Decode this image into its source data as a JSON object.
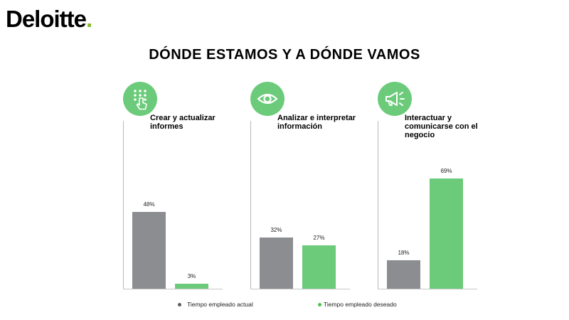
{
  "logo": {
    "text": "Deloitte",
    "dot": ".",
    "dot_color": "#86bc25"
  },
  "title": "DÓNDE ESTAMOS Y A DÓNDE VAMOS",
  "colors": {
    "actual": "#8b8d90",
    "desired": "#6bcb7a"
  },
  "legend": {
    "actual": "Tiempo empleado actual",
    "desired": "Tiempo empleado deseado"
  },
  "chart_data": {
    "type": "bar",
    "title": "DÓNDE ESTAMOS Y A DÓNDE VAMOS",
    "categories": [
      "Crear y actualizar informes",
      "Analizar e interpretar información",
      "Interactuar y comunicarse con el negocio"
    ],
    "series": [
      {
        "name": "Tiempo empleado actual",
        "values": [
          48,
          32,
          18
        ]
      },
      {
        "name": "Tiempo empleado deseado",
        "values": [
          3,
          27,
          69
        ]
      }
    ],
    "labels_actual": [
      "48%",
      "32%",
      "18%"
    ],
    "labels_desired": [
      "3%",
      "27%",
      "69%"
    ],
    "ylim": [
      0,
      75
    ],
    "grid": false,
    "legend_position": "bottom-center",
    "icons": [
      "touch-keypad-icon",
      "eye-icon",
      "megaphone-icon"
    ]
  }
}
